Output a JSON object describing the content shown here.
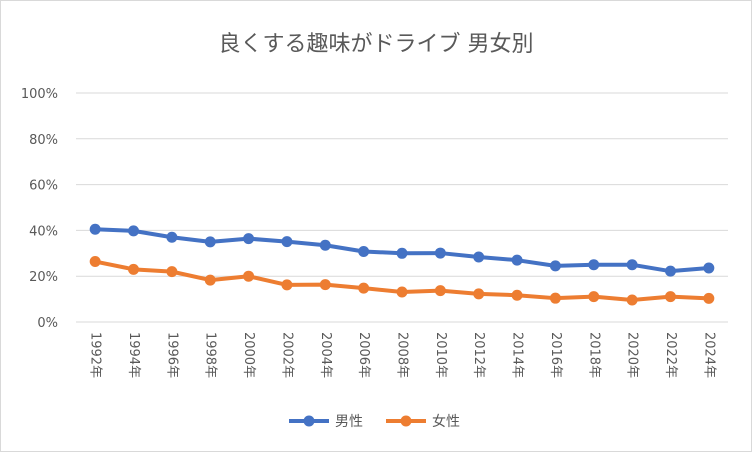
{
  "chart_data": {
    "type": "line",
    "title": "良くする趣味がドライブ 男女別",
    "xlabel": "",
    "ylabel": "",
    "x": [
      "1992年",
      "1994年",
      "1996年",
      "1998年",
      "2000年",
      "2002年",
      "2004年",
      "2006年",
      "2008年",
      "2010年",
      "2012年",
      "2014年",
      "2016年",
      "2018年",
      "2020年",
      "2022年",
      "2024年"
    ],
    "ylim": [
      0,
      100
    ],
    "yticks": [
      "0%",
      "20%",
      "40%",
      "60%",
      "80%",
      "100%"
    ],
    "grid": true,
    "legend_position": "bottom",
    "series": [
      {
        "name": "男性",
        "color": "#4472C4",
        "values": [
          40.5,
          39.8,
          37.0,
          35.0,
          36.4,
          35.1,
          33.5,
          30.8,
          30.0,
          30.1,
          28.4,
          27.0,
          24.5,
          25.0,
          25.0,
          22.2,
          23.6
        ]
      },
      {
        "name": "女性",
        "color": "#ED7D31",
        "values": [
          26.4,
          23.0,
          22.0,
          18.3,
          20.0,
          16.2,
          16.3,
          14.8,
          13.1,
          13.7,
          12.3,
          11.7,
          10.4,
          11.1,
          9.6,
          11.1,
          10.3
        ]
      }
    ]
  }
}
